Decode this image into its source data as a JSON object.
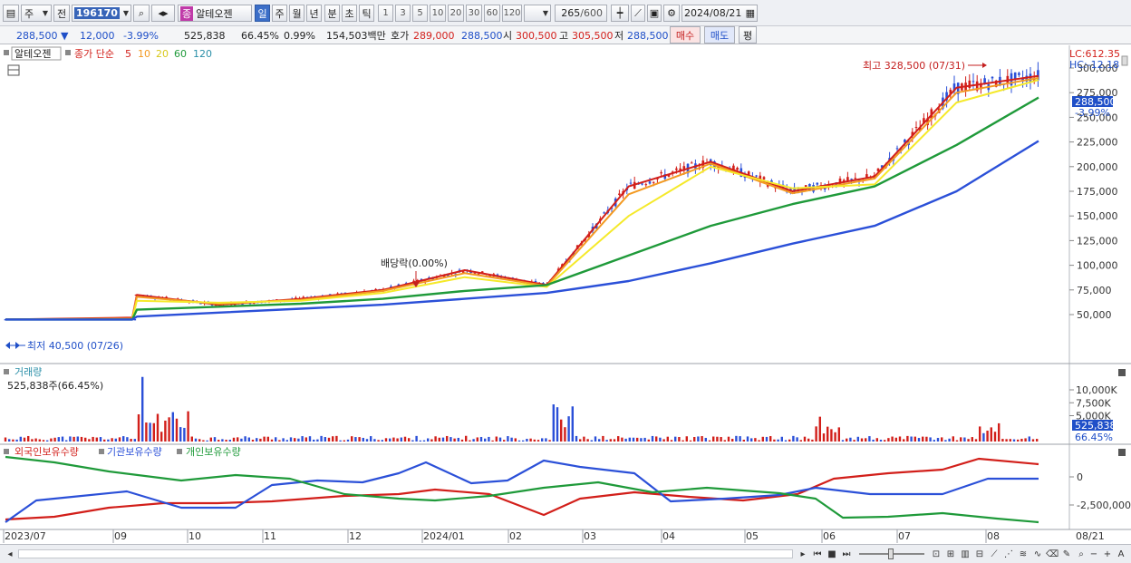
{
  "toolbar": {
    "market_label": "주",
    "prev_label": "전",
    "code": "196170",
    "stock_name_badge": "종",
    "stock_name": "알테오젠",
    "periods": [
      "일",
      "주",
      "월",
      "년",
      "분",
      "초",
      "틱"
    ],
    "selected_period": "일",
    "intervals": [
      "1",
      "3",
      "5",
      "10",
      "20",
      "30",
      "60",
      "120"
    ],
    "bar_count": "265",
    "bar_total": "/600",
    "date": "2024/08/21"
  },
  "quote": {
    "price": "288,500",
    "change": "12,000",
    "change_pct": "-3.99%",
    "volume": "525,838",
    "volume_ratio": "66.45%",
    "turnover_pct": "0.99%",
    "amount": "154,503백만",
    "hoga_label": "호가",
    "ask": "289,000",
    "bid": "288,500",
    "open_label": "시",
    "open": "300,500",
    "high_label": "고",
    "high": "305,500",
    "low_label": "저",
    "low": "288,500",
    "buy_button": "매수",
    "sell_button": "매도",
    "avg_button": "평"
  },
  "price_panel": {
    "legend_name": "알테오젠",
    "legend_ma_label": "종가 단순",
    "ma_periods": [
      "5",
      "10",
      "20",
      "60",
      "120"
    ],
    "ma_colors": [
      "#d21f1a",
      "#f39a22",
      "#f5e92a",
      "#1f9a3a",
      "#2b50d8"
    ],
    "lc_label": "LC:612.35",
    "hc_label": "HC:-12.18",
    "high_annotation": "최고 328,500 (07/31)",
    "low_annotation": "최저 40,500 (07/26)",
    "dividend_annotation": "배당락(0.00%)",
    "current_price_tag": "288,500",
    "current_pct_tag": "-3.99%",
    "y_ticks": [
      "300,000",
      "275,000",
      "250,000",
      "225,000",
      "200,000",
      "175,000",
      "150,000",
      "125,000",
      "100,000",
      "75,000",
      "50,000"
    ]
  },
  "volume_panel": {
    "title": "거래량",
    "value": "525,838주(66.45%)",
    "y_ticks": [
      "10,000K",
      "7,500K",
      "5,000K"
    ],
    "current_tag": "525,838",
    "current_pct": "66.45%"
  },
  "holding_panel": {
    "legend": [
      "외국인보유수량",
      "기관보유수량",
      "개인보유수량"
    ],
    "legend_colors": [
      "#d21f1a",
      "#2b50d8",
      "#1f9a3a"
    ],
    "y_ticks": [
      "0",
      "-2,500,000"
    ]
  },
  "x_axis": {
    "labels": [
      "2023/07",
      "09",
      "10",
      "11",
      "12",
      "2024/01",
      "02",
      "03",
      "04",
      "05",
      "06",
      "07",
      "08"
    ],
    "right_label": "08/21"
  },
  "chart_data": {
    "type": "line",
    "x": [
      "2023/07",
      "2023/08",
      "2023/09",
      "2023/10",
      "2023/11",
      "2023/12",
      "2024/01",
      "2024/02",
      "2024/03",
      "2024/04",
      "2024/05",
      "2024/06",
      "2024/07",
      "2024/08"
    ],
    "series": [
      {
        "name": "5",
        "values": [
          45000,
          47000,
          70000,
          60000,
          66000,
          75000,
          95000,
          80000,
          180000,
          205000,
          175000,
          190000,
          280000,
          292000
        ]
      },
      {
        "name": "10",
        "values": [
          45000,
          46000,
          68000,
          61000,
          65000,
          74000,
          92000,
          79000,
          172000,
          203000,
          173000,
          188000,
          275000,
          290000
        ]
      },
      {
        "name": "20",
        "values": [
          45000,
          45500,
          64000,
          62000,
          64000,
          72000,
          88000,
          78000,
          150000,
          200000,
          178000,
          182000,
          265000,
          288000
        ]
      },
      {
        "name": "60",
        "values": [
          45000,
          45000,
          55000,
          58000,
          61000,
          66000,
          74000,
          80000,
          110000,
          140000,
          162000,
          180000,
          222000,
          270000
        ]
      },
      {
        "name": "120",
        "values": [
          45000,
          45000,
          48000,
          52000,
          56000,
          60000,
          66000,
          72000,
          84000,
          102000,
          122000,
          140000,
          175000,
          226000
        ]
      }
    ],
    "ylim": [
      40000,
      320000
    ]
  }
}
